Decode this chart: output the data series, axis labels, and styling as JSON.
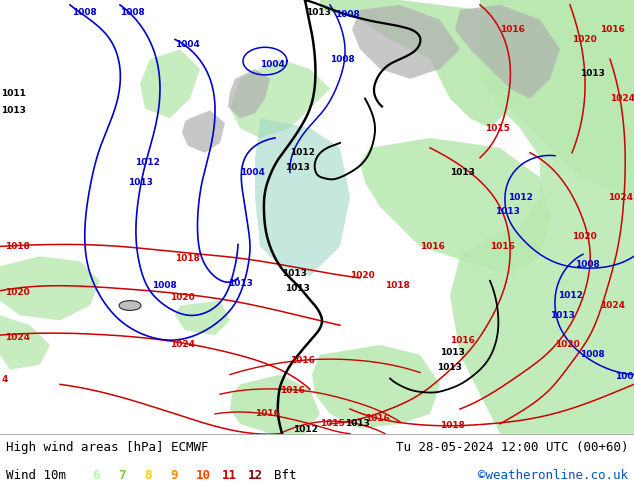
{
  "title_left": "High wind areas [hPa] ECMWF",
  "title_right": "Tu 28-05-2024 12:00 UTC (00+60)",
  "legend_label": "Wind 10m",
  "legend_values": [
    "6",
    "7",
    "8",
    "9",
    "10",
    "11",
    "12"
  ],
  "legend_colors": [
    "#aaffaa",
    "#77cc44",
    "#ffcc00",
    "#ff8800",
    "#ff4400",
    "#cc0000",
    "#880000"
  ],
  "legend_unit": "Bft",
  "watermark": "©weatheronline.co.uk",
  "watermark_color": "#0055cc",
  "fig_width": 6.34,
  "fig_height": 4.9,
  "dpi": 100,
  "map_bg": "#e8e8e8",
  "green_area": "#b8e8b0",
  "teal_area": "#a0d8c8",
  "land_gray": "#b0b0b0",
  "isobar_blue": "#0000cc",
  "isobar_red": "#cc0000",
  "isobar_black": "#000000",
  "bottom_bar_color": "#d8d8d8",
  "font_size": 9
}
